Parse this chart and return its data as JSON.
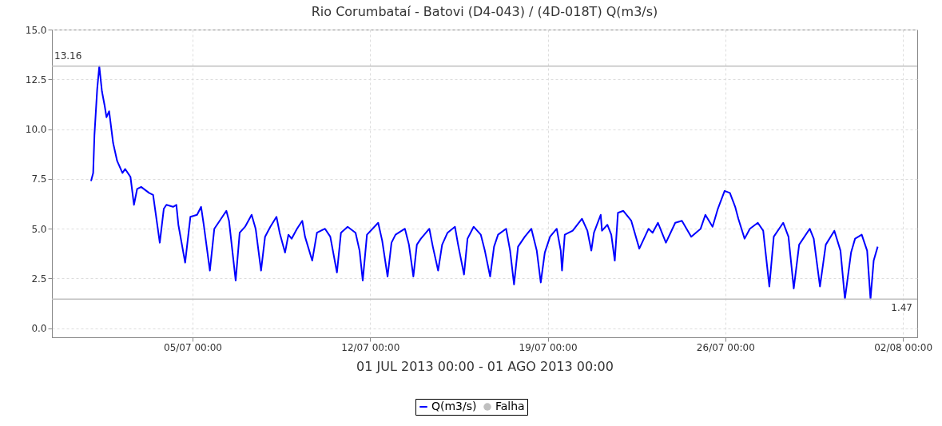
{
  "chart_data": {
    "type": "line",
    "title": "Rio Corumbataí - Batovi (D4-043) / (4D-018T) Q(m3/s)",
    "xlabel": "01 JUL 2013 00:00 - 01 AGO 2013 00:00",
    "xlim": [
      "2013-06-29T11:00",
      "2013-08-02T13:30"
    ],
    "xticks": [
      {
        "value": "2013-07-05T00:00",
        "label": "05/07 00:00"
      },
      {
        "value": "2013-07-12T00:00",
        "label": "12/07 00:00"
      },
      {
        "value": "2013-07-19T00:00",
        "label": "19/07 00:00"
      },
      {
        "value": "2013-07-26T00:00",
        "label": "26/07 00:00"
      },
      {
        "value": "2013-08-02T00:00",
        "label": "02/08 00:00"
      }
    ],
    "ylim": [
      -0.45,
      15
    ],
    "yticks": [
      {
        "value": 0,
        "label": "0.0"
      },
      {
        "value": 2.5,
        "label": "2.5"
      },
      {
        "value": 5,
        "label": "5.0"
      },
      {
        "value": 7.5,
        "label": "7.5"
      },
      {
        "value": 10,
        "label": "10.0"
      },
      {
        "value": 12.5,
        "label": "12.5"
      },
      {
        "value": 15,
        "label": "15.0"
      }
    ],
    "grid": true,
    "legend": "bottom",
    "line_style": "solid",
    "ref_lines": [
      {
        "axis": "y",
        "value": 13.16,
        "label": "13.16",
        "color": "#c0c0c0"
      },
      {
        "axis": "y",
        "value": 1.47,
        "label": "1.47",
        "color": "#c0c0c0"
      }
    ],
    "series": [
      {
        "name": "Q(m3/s)",
        "color": "#0000ff",
        "x": [
          "2013-07-01T00:00",
          "2013-07-01T02:00",
          "2013-07-01T03:12",
          "2013-07-01T05:48",
          "2013-07-01T07:48",
          "2013-07-01T10:18",
          "2013-07-01T12:48",
          "2013-07-01T14:36",
          "2013-07-01T17:06",
          "2013-07-01T20:54",
          "2013-07-02T00:42",
          "2013-07-02T05:42",
          "2013-07-02T08:18",
          "2013-07-02T13:18",
          "2013-07-02T16:36",
          "2013-07-02T19:36",
          "2013-07-02T23:24",
          "2013-07-03T06:54",
          "2013-07-03T10:42",
          "2013-07-03T17:00",
          "2013-07-03T20:48",
          "2013-07-03T23:18",
          "2013-07-04T05:36",
          "2013-07-04T08:42",
          "2013-07-04T10:36",
          "2013-07-04T17:00",
          "2013-07-04T22:00",
          "2013-07-05T04:18",
          "2013-07-05T08:06",
          "2013-07-05T10:36",
          "2013-07-05T16:24",
          "2013-07-05T20:36",
          "2013-07-06T01:42",
          "2013-07-06T08:00",
          "2013-07-06T10:30",
          "2013-07-06T16:48",
          "2013-07-06T20:36",
          "2013-07-07T01:42",
          "2013-07-07T07:54",
          "2013-07-07T11:42",
          "2013-07-07T16:48",
          "2013-07-07T20:36",
          "2013-07-08T01:36",
          "2013-07-08T07:24",
          "2013-07-08T10:24",
          "2013-07-08T15:30",
          "2013-07-08T18:42",
          "2013-07-08T21:42",
          "2013-07-09T02:48",
          "2013-07-09T07:48",
          "2013-07-09T10:24",
          "2013-07-09T17:12",
          "2013-07-09T21:42",
          "2013-07-10T05:18",
          "2013-07-10T10:18",
          "2013-07-10T16:36",
          "2013-07-10T20:24",
          "2013-07-11T02:42",
          "2013-07-11T10:12",
          "2013-07-11T14:00",
          "2013-07-11T17:00",
          "2013-07-11T21:00",
          "2013-07-12T07:36",
          "2013-07-12T11:24",
          "2013-07-12T16:30",
          "2013-07-12T20:12",
          "2013-07-13T00:00",
          "2013-07-13T08:54",
          "2013-07-13T12:42",
          "2013-07-13T16:54",
          "2013-07-13T20:12",
          "2013-07-14T00:00",
          "2013-07-14T08:00",
          "2013-07-14T11:18",
          "2013-07-14T16:18",
          "2013-07-14T20:06",
          "2013-07-15T01:12",
          "2013-07-15T08:12",
          "2013-07-15T11:12",
          "2013-07-15T16:48",
          "2013-07-15T20:06",
          "2013-07-16T01:54",
          "2013-07-16T08:42",
          "2013-07-16T12:30",
          "2013-07-16T17:30",
          "2013-07-16T21:12",
          "2013-07-17T01:00",
          "2013-07-17T08:36",
          "2013-07-17T12:24",
          "2013-07-17T16:06",
          "2013-07-17T19:54",
          "2013-07-18T02:18",
          "2013-07-18T08:30",
          "2013-07-18T13:36",
          "2013-07-18T17:24",
          "2013-07-18T21:12",
          "2013-07-19T02:12",
          "2013-07-19T08:30",
          "2013-07-19T12:18",
          "2013-07-19T13:30",
          "2013-07-19T16:06",
          "2013-07-19T23:36",
          "2013-07-20T08:24",
          "2013-07-20T13:30",
          "2013-07-20T17:12",
          "2013-07-20T19:42",
          "2013-07-21T02:06",
          "2013-07-21T03:18",
          "2013-07-21T08:24",
          "2013-07-21T12:06",
          "2013-07-21T15:24",
          "2013-07-21T18:24",
          "2013-07-21T23:30",
          "2013-07-22T07:00",
          "2013-07-22T14:36",
          "2013-07-22T23:24",
          "2013-07-23T03:12",
          "2013-07-23T08:12",
          "2013-07-23T15:48",
          "2013-07-24T00:36",
          "2013-07-24T06:54",
          "2013-07-24T15:42",
          "2013-07-25T00:36",
          "2013-07-25T05:06",
          "2013-07-25T11:54",
          "2013-07-25T16:54",
          "2013-07-25T23:18",
          "2013-07-26T04:18",
          "2013-07-26T09:18",
          "2013-07-26T12:18",
          "2013-07-26T18:12",
          "2013-07-26T23:12",
          "2013-07-27T06:42",
          "2013-07-27T11:48",
          "2013-07-27T17:36",
          "2013-07-27T21:48",
          "2013-07-28T06:42",
          "2013-07-28T11:42",
          "2013-07-28T16:42",
          "2013-07-28T21:48",
          "2013-07-29T07:48",
          "2013-07-29T11:36",
          "2013-07-29T17:30",
          "2013-07-29T23:00",
          "2013-07-30T07:06",
          "2013-07-30T12:54",
          "2013-07-30T17:06",
          "2013-07-30T22:54",
          "2013-07-31T02:42",
          "2013-07-31T09:00",
          "2013-07-31T14:06",
          "2013-07-31T17:18",
          "2013-07-31T20:18",
          "2013-08-01T00:06"
        ],
        "values": [
          7.4,
          7.8,
          9.7,
          12.0,
          13.16,
          11.9,
          11.2,
          10.6,
          10.9,
          9.3,
          8.4,
          7.8,
          8.0,
          7.6,
          6.2,
          7.0,
          7.1,
          6.8,
          6.7,
          4.3,
          6.0,
          6.2,
          6.1,
          6.2,
          5.2,
          3.3,
          5.6,
          5.7,
          6.1,
          5.2,
          2.9,
          5.0,
          5.4,
          5.9,
          5.4,
          2.4,
          4.8,
          5.1,
          5.7,
          5.0,
          2.9,
          4.6,
          5.1,
          5.6,
          4.8,
          3.8,
          4.7,
          4.5,
          5.0,
          5.4,
          4.6,
          3.4,
          4.8,
          5.0,
          4.6,
          2.8,
          4.8,
          5.1,
          4.8,
          3.9,
          2.4,
          4.7,
          5.3,
          4.4,
          2.6,
          4.3,
          4.7,
          5.0,
          4.2,
          2.6,
          4.2,
          4.5,
          5.0,
          4.1,
          2.9,
          4.2,
          4.8,
          5.1,
          4.2,
          2.7,
          4.5,
          5.1,
          4.7,
          3.9,
          2.6,
          4.1,
          4.7,
          5.0,
          3.9,
          2.2,
          4.1,
          4.6,
          5.0,
          3.9,
          2.3,
          3.8,
          4.6,
          5.0,
          3.9,
          2.9,
          4.7,
          4.9,
          5.5,
          4.9,
          3.9,
          4.8,
          5.7,
          4.9,
          5.2,
          4.7,
          3.4,
          5.8,
          5.9,
          5.4,
          4.0,
          5.0,
          4.8,
          5.3,
          4.3,
          5.3,
          5.4,
          4.6,
          5.0,
          5.7,
          5.1,
          6.0,
          6.9,
          6.8,
          6.1,
          5.5,
          4.5,
          5.0,
          5.3,
          4.9,
          2.1,
          4.6,
          5.3,
          4.6,
          2.0,
          4.2,
          5.0,
          4.5,
          2.1,
          4.2,
          4.9,
          3.9,
          1.47,
          3.8,
          4.5,
          4.7,
          3.9,
          1.47,
          3.4,
          4.1
        ]
      },
      {
        "name": "Falha",
        "type": "scatter",
        "color": "#c0c0c0",
        "marker": "circle"
      }
    ]
  }
}
